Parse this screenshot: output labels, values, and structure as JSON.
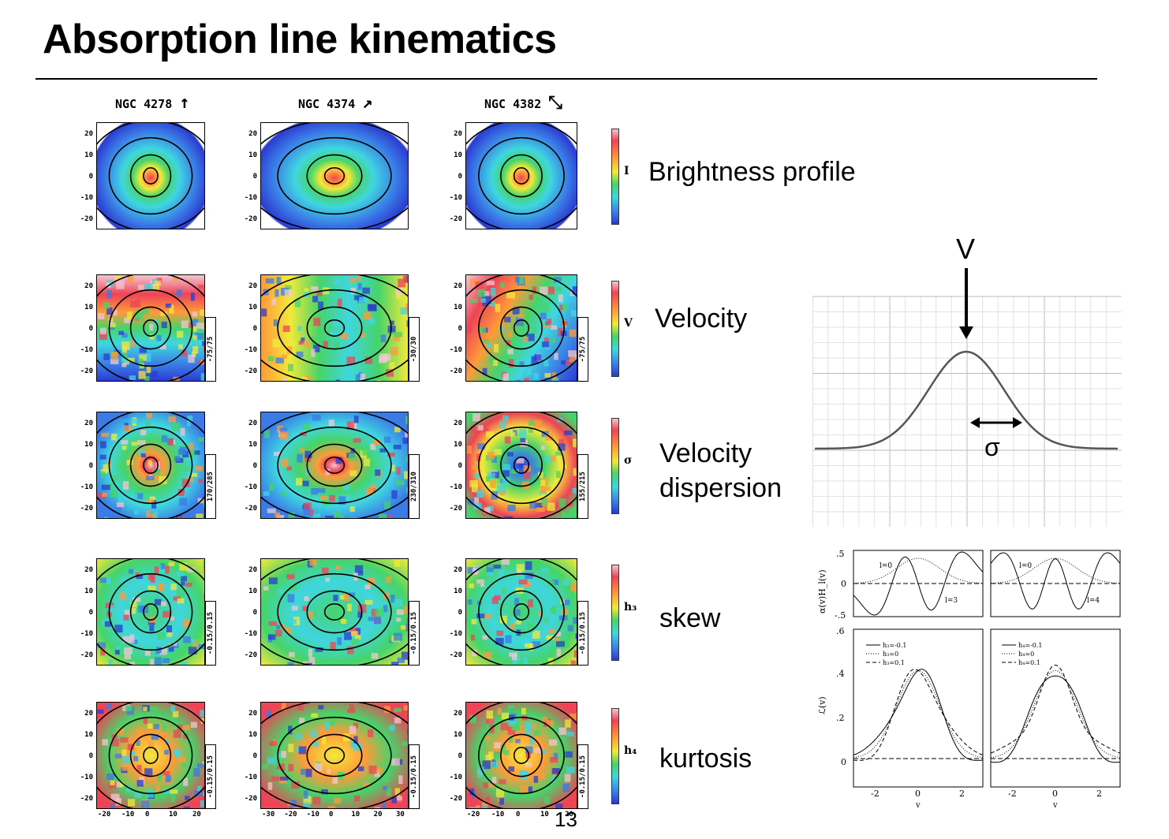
{
  "slide": {
    "title": "Absorption line kinematics",
    "page_number": "13"
  },
  "galaxies": [
    {
      "name": "NGC 4278",
      "arrow": "↑"
    },
    {
      "name": "NGC 4374",
      "arrow": "↗"
    },
    {
      "name": "NGC 4382",
      "arrow": "⤡"
    }
  ],
  "axis_ticks": {
    "y": [
      "20",
      "10",
      "0",
      "-10",
      "-20"
    ],
    "x_col1": [
      "-20",
      "-10",
      "0",
      "10",
      "20"
    ],
    "x_col2": [
      "-30",
      "-20",
      "-10",
      "0",
      "10",
      "20",
      "30"
    ],
    "x_col3": [
      "-20",
      "-10",
      "0",
      "10",
      "20"
    ]
  },
  "rows": [
    {
      "symbol": "I",
      "label": "Brightness profile",
      "ranges": [
        "",
        "",
        ""
      ]
    },
    {
      "symbol": "V",
      "label": "Velocity",
      "ranges": [
        "-75/75",
        "-30/30",
        "-75/75"
      ]
    },
    {
      "symbol": "σ",
      "label": "Velocity dispersion",
      "ranges": [
        "170/285",
        "230/310",
        "155/215"
      ]
    },
    {
      "symbol": "h₃",
      "label": "skew",
      "ranges": [
        "-0.15/0.15",
        "-0.15/0.15",
        "-0.15/0.15"
      ]
    },
    {
      "symbol": "h₄",
      "label": "kurtosis",
      "ranges": [
        "-0.15/0.15",
        "-0.15/0.15",
        "-0.15/0.15"
      ]
    }
  ],
  "gaussian_panel": {
    "v_label": "V",
    "sigma_label": "σ"
  },
  "hermite_panel": {
    "top_ylabel": "α(v)H_l(v)",
    "top_ticks": [
      ".5",
      "0",
      "-.5"
    ],
    "bottom_ylabel": "ℒ(v)",
    "bottom_ticks": [
      ".6",
      ".4",
      ".2",
      "0"
    ],
    "x_ticks": [
      "-2",
      "0",
      "2"
    ],
    "xlabel": "v",
    "left_top_annotations": [
      "l=0",
      "l=3"
    ],
    "right_top_annotations": [
      "l=0",
      "l=4"
    ],
    "left_legend": [
      "h₃=-0.1",
      "h₃=0",
      "h₃=0.1"
    ],
    "right_legend": [
      "h₄=-0.1",
      "h₄=0",
      "h₄=0.1"
    ]
  },
  "colors": {
    "map_pink": "#f4c6d0",
    "map_red": "#ee4455",
    "map_orange": "#ff9a3a",
    "map_yellow": "#f2e93a",
    "map_green": "#46d46a",
    "map_cyan": "#3fd6e0",
    "map_blue": "#3a7be6",
    "map_navy": "#2a3bd0"
  },
  "chart_data": [
    {
      "type": "line",
      "title": "",
      "xlabel": "",
      "ylabel": "",
      "series": [
        {
          "name": "",
          "x": [
            -4,
            -3,
            -2,
            -1.5,
            -1,
            -0.5,
            0,
            0.5,
            1,
            1.5,
            2,
            3,
            4
          ],
          "y": [
            0,
            0.011,
            0.135,
            0.325,
            0.607,
            0.882,
            1,
            0.882,
            0.607,
            0.325,
            0.135,
            0.011,
            0
          ]
        }
      ],
      "annotations": [
        "V",
        "σ"
      ],
      "grid": true
    },
    {
      "type": "line",
      "title": "",
      "xlabel": "v",
      "ylabel": "ℒ(v)",
      "xlim": [
        -3,
        3
      ],
      "ylim": [
        0,
        0.6
      ],
      "series": [
        {
          "name": "h₃=-0.1",
          "x": [
            -3,
            -2,
            -1,
            0,
            1,
            2,
            3
          ],
          "y": [
            0.03,
            0.08,
            0.27,
            0.4,
            0.21,
            0.03,
            0.0
          ]
        },
        {
          "name": "h₃=0",
          "x": [
            -3,
            -2,
            -1,
            0,
            1,
            2,
            3
          ],
          "y": [
            0.01,
            0.05,
            0.24,
            0.4,
            0.24,
            0.05,
            0.01
          ]
        },
        {
          "name": "h₃=0.1",
          "x": [
            -3,
            -2,
            -1,
            0,
            1,
            2,
            3
          ],
          "y": [
            0.0,
            0.03,
            0.21,
            0.4,
            0.27,
            0.08,
            0.03
          ]
        }
      ]
    },
    {
      "type": "line",
      "title": "",
      "xlabel": "v",
      "ylabel": "",
      "xlim": [
        -3,
        3
      ],
      "ylim": [
        0,
        0.6
      ],
      "series": [
        {
          "name": "h₄=-0.1",
          "x": [
            -3,
            -2,
            -1,
            0,
            1,
            2,
            3
          ],
          "y": [
            0.0,
            0.04,
            0.25,
            0.37,
            0.25,
            0.04,
            0.0
          ]
        },
        {
          "name": "h₄=0",
          "x": [
            -3,
            -2,
            -1,
            0,
            1,
            2,
            3
          ],
          "y": [
            0.01,
            0.05,
            0.24,
            0.4,
            0.24,
            0.05,
            0.01
          ]
        },
        {
          "name": "h₄=0.1",
          "x": [
            -3,
            -2,
            -1,
            0,
            1,
            2,
            3
          ],
          "y": [
            0.03,
            0.07,
            0.22,
            0.42,
            0.22,
            0.07,
            0.03
          ]
        }
      ]
    }
  ]
}
